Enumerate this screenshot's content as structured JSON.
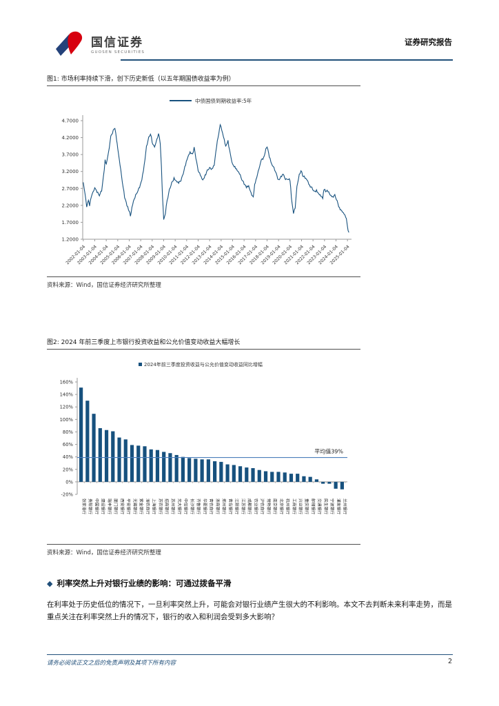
{
  "colors": {
    "accent_navy": "#1F4E79",
    "series_navy": "#17517E",
    "average_blue": "#4A7EBB",
    "logo_navy": "#24427A",
    "logo_red": "#D7000F",
    "axis_gray": "#9a9a9a",
    "tick_text": "#333333"
  },
  "header": {
    "logo_cn": "国信证券",
    "logo_en": "GUOSEN SECURITIES",
    "report_type": "证券研究报告"
  },
  "fig1": {
    "caption": "图1: 市场利率持续下滑，创下历史新低（以五年期国债收益率为例）",
    "source": "资料来源：Wind，国信证券经济研究所整理"
  },
  "fig2": {
    "caption": "图2: 2024 年前三季度上市银行投资收益和公允价值变动收益大幅增长",
    "source": "资料来源：Wind，国信证券经济研究所整理"
  },
  "section": {
    "bullet": "◆",
    "heading": "利率突然上升对银行业绩的影响：可通过拨备平滑"
  },
  "paragraph": "在利率处于历史低位的情况下，一旦利率突然上升，可能会对银行业绩产生很大的不利影响。本文不去判断未来利率走势，而是重点关注在利率突然上升的情况下，银行的收入和利润会受到多大影响？",
  "footer": {
    "disclaimer": "请务必阅读正文之后的免责声明及其项下所有内容",
    "page": "2"
  },
  "chart_data": [
    {
      "id": "fig1",
      "type": "line",
      "legend": "中债国债到期收益率:5年",
      "ylim": [
        1.2,
        4.7
      ],
      "ytick_labels": [
        "1.2000",
        "1.7000",
        "2.2000",
        "2.7000",
        "3.2000",
        "3.7000",
        "4.2000",
        "4.7000"
      ],
      "xtick_labels": [
        "2002-01-04",
        "2003-01-04",
        "2004-01-04",
        "2005-01-04",
        "2006-01-04",
        "2007-01-04",
        "2008-01-04",
        "2009-01-04",
        "2010-01-04",
        "2011-01-04",
        "2012-01-04",
        "2013-01-04",
        "2014-01-04",
        "2015-01-04",
        "2016-01-04",
        "2017-01-04",
        "2018-01-04",
        "2019-01-04",
        "2020-01-04",
        "2021-01-04",
        "2022-01-04",
        "2023-01-04",
        "2024-01-04",
        "2025-01-04"
      ],
      "xtick_years": [
        2002,
        2003,
        2004,
        2005,
        2006,
        2007,
        2008,
        2009,
        2010,
        2011,
        2012,
        2013,
        2014,
        2015,
        2016,
        2017,
        2018,
        2019,
        2020,
        2021,
        2022,
        2023,
        2024,
        2025
      ],
      "xlim": [
        2001.95,
        2025.35
      ],
      "x": [
        2002.0,
        2002.15,
        2002.3,
        2002.45,
        2002.55,
        2002.7,
        2002.85,
        2003.0,
        2003.2,
        2003.4,
        2003.6,
        2003.75,
        2003.9,
        2004.0,
        2004.2,
        2004.4,
        2004.6,
        2004.75,
        2004.9,
        2005.0,
        2005.2,
        2005.4,
        2005.6,
        2005.8,
        2006.0,
        2006.1,
        2006.3,
        2006.5,
        2006.7,
        2006.9,
        2007.1,
        2007.3,
        2007.5,
        2007.7,
        2007.85,
        2008.0,
        2008.2,
        2008.4,
        2008.55,
        2008.7,
        2008.8,
        2008.9,
        2009.0,
        2009.15,
        2009.3,
        2009.5,
        2009.7,
        2009.9,
        2010.1,
        2010.3,
        2010.5,
        2010.7,
        2010.9,
        2011.1,
        2011.3,
        2011.5,
        2011.65,
        2011.8,
        2012.0,
        2012.2,
        2012.4,
        2012.6,
        2012.8,
        2013.0,
        2013.2,
        2013.4,
        2013.6,
        2013.8,
        2013.92,
        2014.05,
        2014.2,
        2014.4,
        2014.6,
        2014.8,
        2015.0,
        2015.2,
        2015.4,
        2015.6,
        2015.8,
        2016.0,
        2016.2,
        2016.4,
        2016.6,
        2016.8,
        2016.92,
        2017.1,
        2017.3,
        2017.5,
        2017.7,
        2017.9,
        2018.0,
        2018.2,
        2018.4,
        2018.6,
        2018.8,
        2019.0,
        2019.2,
        2019.4,
        2019.6,
        2019.8,
        2020.0,
        2020.12,
        2020.3,
        2020.45,
        2020.6,
        2020.8,
        2020.95,
        2021.1,
        2021.3,
        2021.5,
        2021.7,
        2021.9,
        2022.1,
        2022.3,
        2022.5,
        2022.7,
        2022.85,
        2022.95,
        2023.1,
        2023.3,
        2023.5,
        2023.7,
        2023.9,
        2024.1,
        2024.3,
        2024.5,
        2024.7,
        2024.85,
        2024.95,
        2025.05,
        2025.12
      ],
      "y": [
        2.88,
        2.55,
        2.15,
        2.35,
        2.18,
        2.45,
        2.6,
        2.72,
        2.58,
        2.48,
        2.62,
        3.05,
        3.55,
        3.42,
        3.78,
        4.25,
        4.42,
        4.47,
        4.12,
        3.88,
        3.38,
        2.88,
        2.42,
        2.18,
        2.02,
        1.88,
        2.22,
        2.42,
        2.58,
        2.72,
        2.95,
        3.4,
        3.95,
        4.22,
        4.3,
        4.05,
        3.92,
        4.15,
        4.32,
        4.02,
        3.35,
        2.45,
        1.78,
        1.95,
        2.35,
        2.68,
        2.88,
        3.02,
        2.92,
        2.85,
        2.92,
        3.12,
        3.38,
        3.62,
        3.78,
        3.72,
        3.92,
        3.58,
        3.22,
        3.08,
        2.95,
        3.1,
        3.25,
        3.32,
        3.28,
        3.38,
        3.92,
        4.32,
        4.58,
        4.42,
        4.22,
        3.95,
        4.12,
        3.72,
        3.42,
        3.35,
        3.22,
        3.12,
        2.95,
        2.82,
        2.72,
        2.78,
        2.58,
        2.45,
        2.82,
        3.02,
        3.28,
        3.55,
        3.62,
        3.88,
        3.92,
        3.62,
        3.42,
        3.32,
        3.15,
        2.96,
        3.06,
        3.12,
        2.96,
        2.96,
        2.92,
        2.42,
        1.96,
        2.12,
        2.76,
        3.12,
        3.22,
        3.06,
        3.0,
        2.94,
        2.8,
        2.74,
        2.62,
        2.66,
        2.54,
        2.46,
        2.4,
        2.66,
        2.6,
        2.6,
        2.5,
        2.46,
        2.52,
        2.34,
        2.14,
        2.04,
        1.94,
        1.84,
        1.7,
        1.46,
        1.4
      ]
    },
    {
      "id": "fig2",
      "type": "bar",
      "legend": "2024年前三季度投资收益与公允价值变动收益同比增幅",
      "ylim": [
        -20,
        160
      ],
      "ytick_values": [
        160,
        140,
        120,
        100,
        80,
        60,
        40,
        20,
        0,
        -20
      ],
      "ytick_labels": [
        "160%",
        "140%",
        "120%",
        "100%",
        "80%",
        "60%",
        "40%",
        "20%",
        "0%",
        "-20%"
      ],
      "average": 39,
      "average_label": "平均值39%",
      "categories": [
        "张家港行",
        "贵阳银行",
        "中国银行",
        "建设银行",
        "瑞丰银行",
        "厦门银行",
        "西安银行",
        "平安银行",
        "无锡银行",
        "紫金银行",
        "渝农商行",
        "上海银行",
        "苏农银行",
        "招商银行",
        "苏州银行",
        "光大银行",
        "中信银行",
        "长沙银行",
        "齐鲁银行",
        "华夏银行",
        "青农商行",
        "浙商银行",
        "郑州银行",
        "青岛银行",
        "江阴银行",
        "江苏银行",
        "成都银行",
        "农业银行",
        "沪农商行",
        "常熟银行",
        "南京银行",
        "北京银行",
        "杭州银行",
        "工商银行",
        "兴业银行",
        "重庆银行",
        "邮储银行",
        "交通银行",
        "民生银行",
        "宁波银行",
        "浦发银行",
        "兰州银行"
      ],
      "values": [
        151,
        130,
        109,
        86,
        83,
        81,
        71,
        68,
        59,
        58,
        57,
        52,
        51,
        48,
        46,
        43,
        40,
        38,
        37,
        36,
        36,
        33,
        32,
        28,
        27,
        25,
        23,
        22,
        19,
        17,
        16,
        16,
        15,
        13,
        13,
        9,
        8,
        4,
        -3,
        -3,
        -11,
        -12
      ]
    }
  ]
}
